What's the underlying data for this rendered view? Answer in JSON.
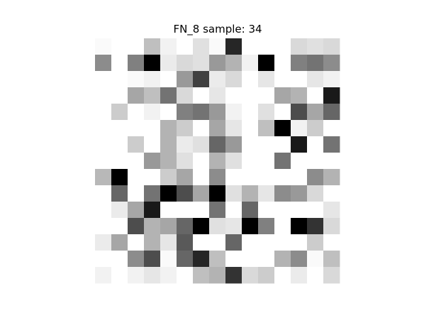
{
  "chart_data": {
    "type": "heatmap",
    "title": "FN_8 sample: 34",
    "colormap": "gray_r",
    "vmin": 0,
    "vmax": 1,
    "axes_visible": false,
    "rows": 15,
    "cols": 15,
    "values": [
      [
        0.02,
        0.0,
        0.0,
        0.25,
        0.05,
        0.0,
        0.12,
        0.02,
        0.85,
        0.0,
        0.0,
        0.0,
        0.15,
        0.12,
        0.15
      ],
      [
        0.45,
        0.0,
        0.5,
        1.0,
        0.08,
        0.15,
        0.12,
        0.4,
        0.3,
        0.05,
        1.0,
        0.0,
        0.5,
        0.55,
        0.45
      ],
      [
        0.0,
        0.0,
        0.02,
        0.05,
        0.0,
        0.4,
        0.75,
        0.08,
        0.15,
        0.0,
        0.1,
        0.0,
        0.0,
        0.1,
        0.05
      ],
      [
        0.0,
        0.0,
        0.35,
        0.25,
        0.55,
        0.15,
        0.0,
        0.1,
        0.0,
        0.0,
        0.0,
        0.35,
        0.3,
        0.0,
        0.9
      ],
      [
        0.0,
        0.2,
        0.0,
        0.05,
        0.0,
        0.5,
        0.55,
        0.4,
        0.05,
        0.0,
        0.12,
        0.0,
        0.7,
        0.35,
        0.6
      ],
      [
        0.0,
        0.0,
        0.0,
        0.0,
        0.3,
        0.2,
        0.0,
        0.35,
        0.1,
        0.0,
        0.25,
        1.0,
        0.05,
        0.2,
        0.0
      ],
      [
        0.0,
        0.0,
        0.2,
        0.0,
        0.3,
        0.08,
        0.12,
        0.6,
        0.4,
        0.0,
        0.0,
        0.0,
        0.9,
        0.0,
        0.55
      ],
      [
        0.0,
        0.0,
        0.0,
        0.4,
        0.3,
        0.12,
        0.0,
        0.3,
        0.12,
        0.0,
        0.0,
        0.55,
        0.0,
        0.0,
        0.0
      ],
      [
        0.28,
        1.0,
        0.0,
        0.0,
        0.2,
        0.35,
        0.0,
        0.45,
        0.0,
        0.0,
        0.0,
        0.0,
        0.0,
        0.45,
        0.3
      ],
      [
        0.0,
        0.6,
        0.0,
        0.55,
        1.0,
        0.7,
        0.35,
        1.0,
        0.12,
        0.3,
        0.1,
        0.45,
        0.4,
        0.15,
        0.0
      ],
      [
        0.0,
        0.08,
        0.35,
        0.9,
        0.0,
        0.0,
        0.0,
        0.55,
        0.0,
        0.6,
        0.0,
        0.0,
        0.0,
        0.0,
        0.1
      ],
      [
        0.0,
        0.0,
        0.7,
        0.3,
        0.35,
        0.6,
        1.0,
        0.12,
        0.1,
        1.0,
        0.5,
        0.0,
        1.0,
        0.8,
        0.15
      ],
      [
        0.08,
        0.35,
        0.0,
        0.3,
        0.1,
        0.65,
        0.0,
        0.0,
        0.6,
        0.0,
        0.0,
        0.0,
        0.0,
        0.2,
        0.0
      ],
      [
        0.0,
        0.0,
        0.45,
        0.7,
        0.02,
        0.6,
        0.85,
        0.25,
        0.0,
        0.0,
        0.0,
        0.3,
        0.45,
        0.02,
        0.25
      ],
      [
        0.05,
        0.0,
        0.05,
        0.1,
        0.05,
        0.0,
        0.25,
        0.3,
        0.8,
        0.15,
        0.2,
        0.0,
        0.08,
        0.0,
        0.15
      ]
    ]
  }
}
